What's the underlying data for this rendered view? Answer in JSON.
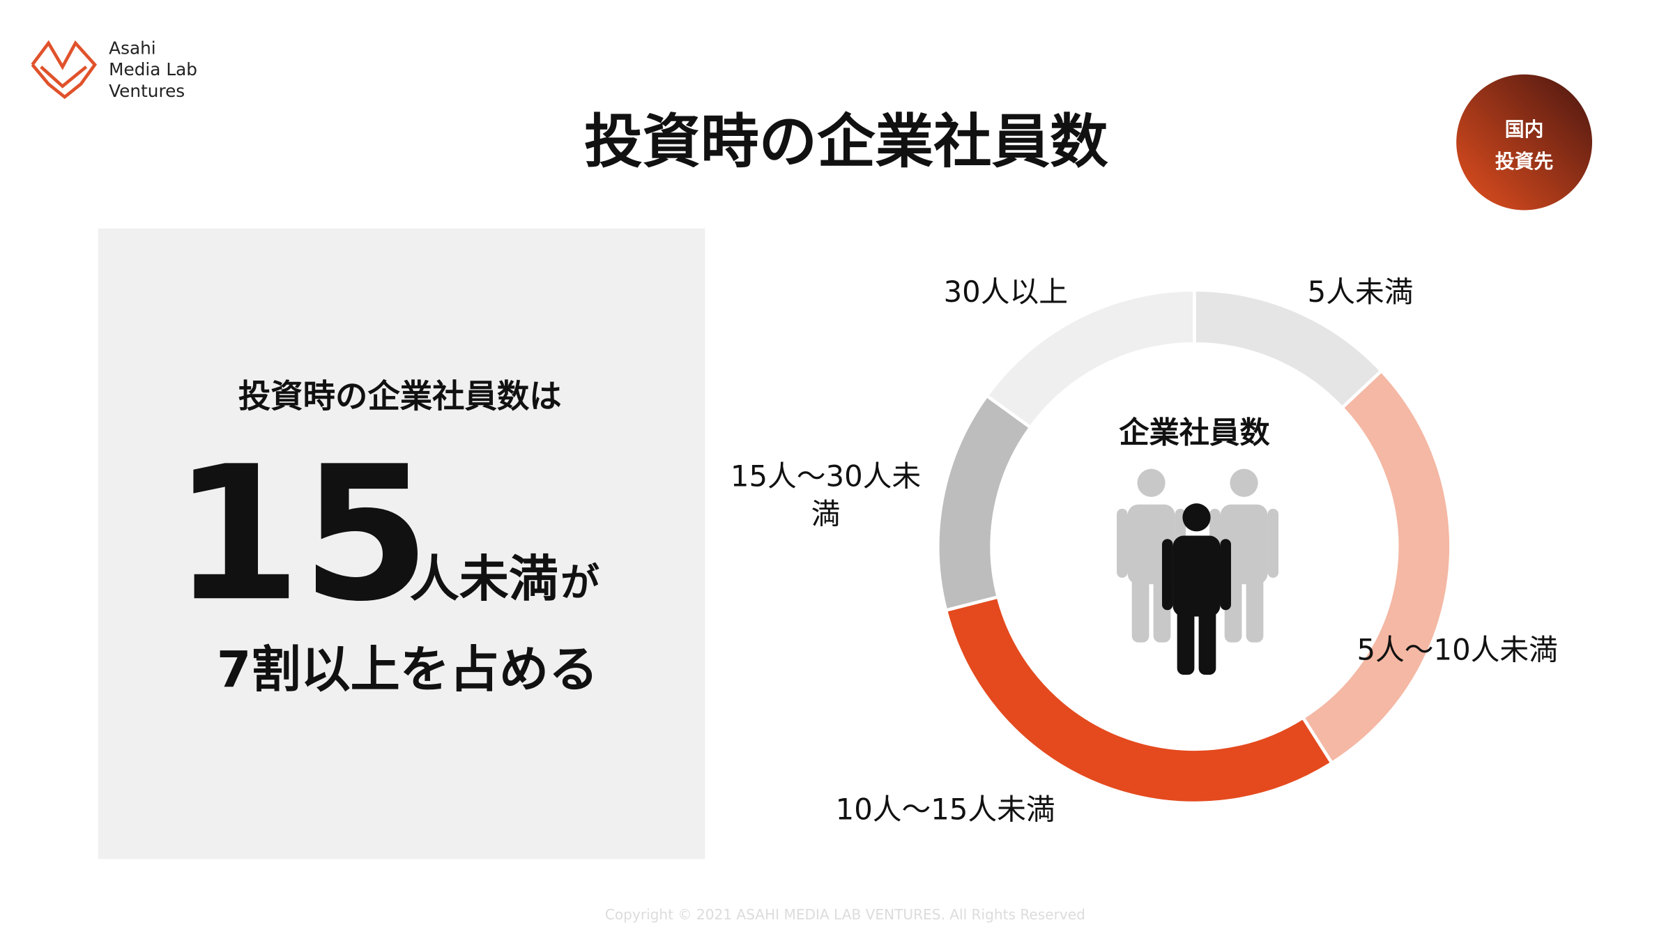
{
  "logo": {
    "lines": [
      "Asahi",
      "Media Lab",
      "Ventures"
    ]
  },
  "header": {
    "title": "投資時の企業社員数",
    "badge": [
      "国内",
      "投資先"
    ]
  },
  "summary": {
    "lead": "投資時の企業社員数は",
    "number": "15",
    "unit": "人未満",
    "particle": "が",
    "conclusion": "7割以上を占める"
  },
  "chart_data": {
    "type": "pie",
    "donut": true,
    "center_label": "企業社員数",
    "categories": [
      "5人未満",
      "5人〜10人未満",
      "10人〜15人未満",
      "15人〜30人未満",
      "30人以上"
    ],
    "values": [
      13,
      28,
      30,
      14,
      15
    ],
    "colors": [
      "#e6e5e6",
      "#f4b8a4",
      "#e44a1e",
      "#bdbdbd",
      "#efefef"
    ]
  },
  "footer": {
    "copyright": "Copyright © 2021 ASAHI MEDIA LAB VENTURES. All Rights Reserved"
  }
}
